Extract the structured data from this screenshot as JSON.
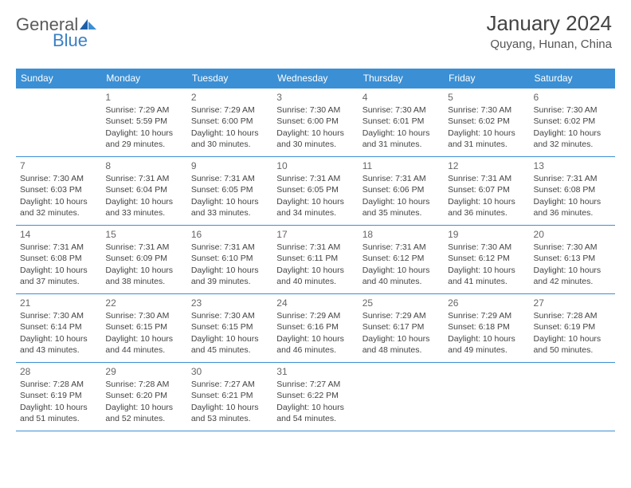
{
  "brand": {
    "part1": "General",
    "part2": "Blue"
  },
  "title": "January 2024",
  "location": "Quyang, Hunan, China",
  "colors": {
    "header_bg": "#3b8fd4",
    "header_fg": "#ffffff",
    "rule": "#3b8fd4",
    "text": "#444444",
    "brand_blue": "#3b7fc4",
    "brand_gray": "#5a5a5a",
    "page_bg": "#ffffff"
  },
  "typography": {
    "title_fontsize": 26,
    "location_fontsize": 15,
    "dayhead_fontsize": 12,
    "daynum_fontsize": 12,
    "body_fontsize": 10.5
  },
  "weekdays": [
    "Sunday",
    "Monday",
    "Tuesday",
    "Wednesday",
    "Thursday",
    "Friday",
    "Saturday"
  ],
  "weeks": [
    [
      null,
      {
        "n": "1",
        "sr": "7:29 AM",
        "ss": "5:59 PM",
        "dl": "10 hours and 29 minutes."
      },
      {
        "n": "2",
        "sr": "7:29 AM",
        "ss": "6:00 PM",
        "dl": "10 hours and 30 minutes."
      },
      {
        "n": "3",
        "sr": "7:30 AM",
        "ss": "6:00 PM",
        "dl": "10 hours and 30 minutes."
      },
      {
        "n": "4",
        "sr": "7:30 AM",
        "ss": "6:01 PM",
        "dl": "10 hours and 31 minutes."
      },
      {
        "n": "5",
        "sr": "7:30 AM",
        "ss": "6:02 PM",
        "dl": "10 hours and 31 minutes."
      },
      {
        "n": "6",
        "sr": "7:30 AM",
        "ss": "6:02 PM",
        "dl": "10 hours and 32 minutes."
      }
    ],
    [
      {
        "n": "7",
        "sr": "7:30 AM",
        "ss": "6:03 PM",
        "dl": "10 hours and 32 minutes."
      },
      {
        "n": "8",
        "sr": "7:31 AM",
        "ss": "6:04 PM",
        "dl": "10 hours and 33 minutes."
      },
      {
        "n": "9",
        "sr": "7:31 AM",
        "ss": "6:05 PM",
        "dl": "10 hours and 33 minutes."
      },
      {
        "n": "10",
        "sr": "7:31 AM",
        "ss": "6:05 PM",
        "dl": "10 hours and 34 minutes."
      },
      {
        "n": "11",
        "sr": "7:31 AM",
        "ss": "6:06 PM",
        "dl": "10 hours and 35 minutes."
      },
      {
        "n": "12",
        "sr": "7:31 AM",
        "ss": "6:07 PM",
        "dl": "10 hours and 36 minutes."
      },
      {
        "n": "13",
        "sr": "7:31 AM",
        "ss": "6:08 PM",
        "dl": "10 hours and 36 minutes."
      }
    ],
    [
      {
        "n": "14",
        "sr": "7:31 AM",
        "ss": "6:08 PM",
        "dl": "10 hours and 37 minutes."
      },
      {
        "n": "15",
        "sr": "7:31 AM",
        "ss": "6:09 PM",
        "dl": "10 hours and 38 minutes."
      },
      {
        "n": "16",
        "sr": "7:31 AM",
        "ss": "6:10 PM",
        "dl": "10 hours and 39 minutes."
      },
      {
        "n": "17",
        "sr": "7:31 AM",
        "ss": "6:11 PM",
        "dl": "10 hours and 40 minutes."
      },
      {
        "n": "18",
        "sr": "7:31 AM",
        "ss": "6:12 PM",
        "dl": "10 hours and 40 minutes."
      },
      {
        "n": "19",
        "sr": "7:30 AM",
        "ss": "6:12 PM",
        "dl": "10 hours and 41 minutes."
      },
      {
        "n": "20",
        "sr": "7:30 AM",
        "ss": "6:13 PM",
        "dl": "10 hours and 42 minutes."
      }
    ],
    [
      {
        "n": "21",
        "sr": "7:30 AM",
        "ss": "6:14 PM",
        "dl": "10 hours and 43 minutes."
      },
      {
        "n": "22",
        "sr": "7:30 AM",
        "ss": "6:15 PM",
        "dl": "10 hours and 44 minutes."
      },
      {
        "n": "23",
        "sr": "7:30 AM",
        "ss": "6:15 PM",
        "dl": "10 hours and 45 minutes."
      },
      {
        "n": "24",
        "sr": "7:29 AM",
        "ss": "6:16 PM",
        "dl": "10 hours and 46 minutes."
      },
      {
        "n": "25",
        "sr": "7:29 AM",
        "ss": "6:17 PM",
        "dl": "10 hours and 48 minutes."
      },
      {
        "n": "26",
        "sr": "7:29 AM",
        "ss": "6:18 PM",
        "dl": "10 hours and 49 minutes."
      },
      {
        "n": "27",
        "sr": "7:28 AM",
        "ss": "6:19 PM",
        "dl": "10 hours and 50 minutes."
      }
    ],
    [
      {
        "n": "28",
        "sr": "7:28 AM",
        "ss": "6:19 PM",
        "dl": "10 hours and 51 minutes."
      },
      {
        "n": "29",
        "sr": "7:28 AM",
        "ss": "6:20 PM",
        "dl": "10 hours and 52 minutes."
      },
      {
        "n": "30",
        "sr": "7:27 AM",
        "ss": "6:21 PM",
        "dl": "10 hours and 53 minutes."
      },
      {
        "n": "31",
        "sr": "7:27 AM",
        "ss": "6:22 PM",
        "dl": "10 hours and 54 minutes."
      },
      null,
      null,
      null
    ]
  ],
  "labels": {
    "sunrise": "Sunrise:",
    "sunset": "Sunset:",
    "daylight": "Daylight:"
  }
}
